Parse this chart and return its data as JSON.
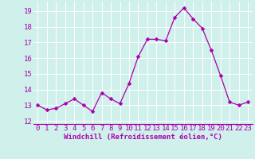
{
  "x": [
    0,
    1,
    2,
    3,
    4,
    5,
    6,
    7,
    8,
    9,
    10,
    11,
    12,
    13,
    14,
    15,
    16,
    17,
    18,
    19,
    20,
    21,
    22,
    23
  ],
  "y": [
    13.0,
    12.7,
    12.8,
    13.1,
    13.4,
    13.0,
    12.6,
    13.8,
    13.4,
    13.1,
    14.4,
    16.1,
    17.2,
    17.2,
    17.1,
    18.6,
    19.2,
    18.5,
    17.9,
    16.5,
    14.9,
    13.2,
    13.0,
    13.2
  ],
  "line_color": "#aa00aa",
  "marker_color": "#aa00aa",
  "bg_color": "#d0f0ec",
  "grid_color": "#b8e8e0",
  "xlabel": "Windchill (Refroidissement éolien,°C)",
  "ylim": [
    11.8,
    19.6
  ],
  "xlim": [
    -0.5,
    23.5
  ],
  "yticks": [
    12,
    13,
    14,
    15,
    16,
    17,
    18,
    19
  ],
  "xticks": [
    0,
    1,
    2,
    3,
    4,
    5,
    6,
    7,
    8,
    9,
    10,
    11,
    12,
    13,
    14,
    15,
    16,
    17,
    18,
    19,
    20,
    21,
    22,
    23
  ],
  "axis_fontsize": 6.5,
  "tick_fontsize": 6.5
}
